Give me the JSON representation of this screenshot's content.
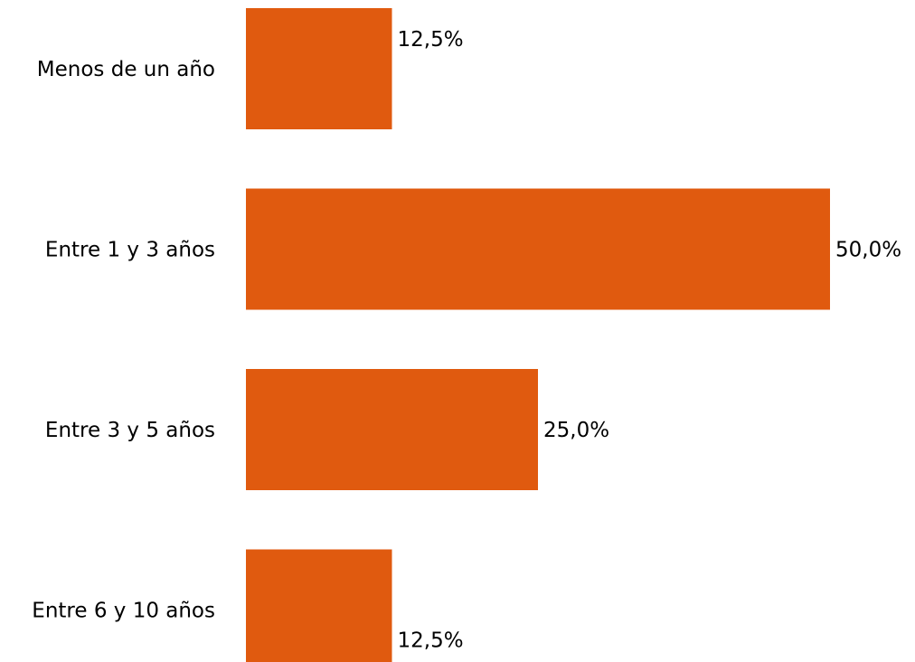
{
  "chart_data": {
    "type": "bar",
    "orientation": "horizontal",
    "categories": [
      "Menos de un año",
      "Entre 1 y 3 años",
      "Entre 3 y 5 años",
      "Entre 6 y 10 años"
    ],
    "values": [
      12.5,
      50.0,
      25.0,
      12.5
    ],
    "value_labels": [
      "12,5%",
      "50,0%",
      "25,0%",
      "12,5%"
    ],
    "xlim": [
      0,
      50
    ],
    "bar_color": "#e05a0f",
    "grid": false,
    "legend": "none"
  }
}
